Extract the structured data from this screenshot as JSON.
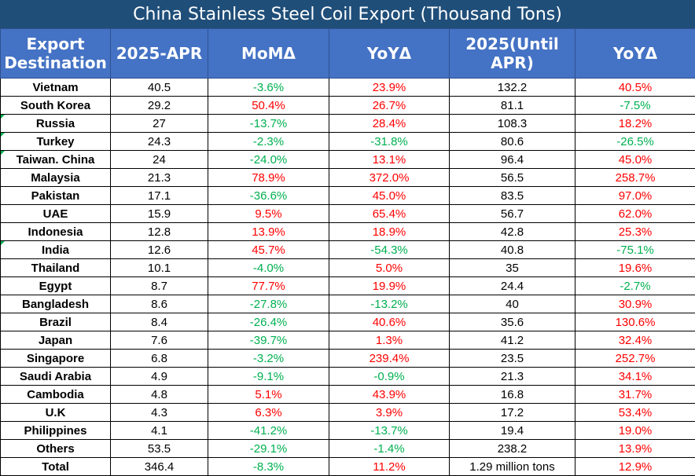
{
  "title": "China Stainless Steel Coil Export (Thousand Tons)",
  "headers": [
    "Export Destination",
    "2025-APR",
    "MoMΔ",
    "YoYΔ",
    "2025(Until APR)",
    "YoYΔ"
  ],
  "colors": {
    "title_bg": "#1f4e79",
    "header_bg": "#4472c4",
    "increase": "#ff0000",
    "decrease": "#00b050"
  },
  "rows": [
    {
      "dest": "Vietnam",
      "apr": "40.5",
      "mom": "-3.6%",
      "yoy": "23.9%",
      "ytd": "132.2",
      "ytd_yoy": "40.5%"
    },
    {
      "dest": "South Korea",
      "apr": "29.2",
      "mom": "50.4%",
      "yoy": "26.7%",
      "ytd": "81.1",
      "ytd_yoy": "-7.5%"
    },
    {
      "dest": "Russia",
      "apr": "27",
      "mom": "-13.7%",
      "yoy": "28.4%",
      "ytd": "108.3",
      "ytd_yoy": "18.2%"
    },
    {
      "dest": "Turkey",
      "apr": "24.3",
      "mom": "-2.3%",
      "yoy": "-31.8%",
      "ytd": "80.6",
      "ytd_yoy": "-26.5%"
    },
    {
      "dest": "Taiwan. China",
      "apr": "24",
      "mom": "-24.0%",
      "yoy": "13.1%",
      "ytd": "96.4",
      "ytd_yoy": "45.0%"
    },
    {
      "dest": "Malaysia",
      "apr": "21.3",
      "mom": "78.9%",
      "yoy": "372.0%",
      "ytd": "56.5",
      "ytd_yoy": "258.7%"
    },
    {
      "dest": "Pakistan",
      "apr": "17.1",
      "mom": "-36.6%",
      "yoy": "45.0%",
      "ytd": "83.5",
      "ytd_yoy": "97.0%"
    },
    {
      "dest": "UAE",
      "apr": "15.9",
      "mom": "9.5%",
      "yoy": "65.4%",
      "ytd": "56.7",
      "ytd_yoy": "62.0%"
    },
    {
      "dest": "Indonesia",
      "apr": "12.8",
      "mom": "13.9%",
      "yoy": "18.9%",
      "ytd": "42.8",
      "ytd_yoy": "25.3%"
    },
    {
      "dest": "India",
      "apr": "12.6",
      "mom": "45.7%",
      "yoy": "-54.3%",
      "ytd": "40.8",
      "ytd_yoy": "-75.1%"
    },
    {
      "dest": "Thailand",
      "apr": "10.1",
      "mom": "-4.0%",
      "yoy": "5.0%",
      "ytd": "35",
      "ytd_yoy": "19.6%"
    },
    {
      "dest": "Egypt",
      "apr": "8.7",
      "mom": "77.7%",
      "yoy": "19.9%",
      "ytd": "24.4",
      "ytd_yoy": "-2.7%"
    },
    {
      "dest": "Bangladesh",
      "apr": "8.6",
      "mom": "-27.8%",
      "yoy": "-13.2%",
      "ytd": "40",
      "ytd_yoy": "30.9%"
    },
    {
      "dest": "Brazil",
      "apr": "8.4",
      "mom": "-26.4%",
      "yoy": "40.6%",
      "ytd": "35.6",
      "ytd_yoy": "130.6%"
    },
    {
      "dest": "Japan",
      "apr": "7.6",
      "mom": "-39.7%",
      "yoy": "1.3%",
      "ytd": "41.2",
      "ytd_yoy": "32.4%"
    },
    {
      "dest": "Singapore",
      "apr": "6.8",
      "mom": "-3.2%",
      "yoy": "239.4%",
      "ytd": "23.5",
      "ytd_yoy": "252.7%"
    },
    {
      "dest": "Saudi Arabia",
      "apr": "4.9",
      "mom": "-9.1%",
      "yoy": "-0.9%",
      "ytd": "21.3",
      "ytd_yoy": "34.1%"
    },
    {
      "dest": "Cambodia",
      "apr": "4.8",
      "mom": "5.1%",
      "yoy": "43.9%",
      "ytd": "16.8",
      "ytd_yoy": "31.7%"
    },
    {
      "dest": "U.K",
      "apr": "4.3",
      "mom": "6.3%",
      "yoy": "3.9%",
      "ytd": "17.2",
      "ytd_yoy": "53.4%"
    },
    {
      "dest": "Philippines",
      "apr": "4.1",
      "mom": "-41.2%",
      "yoy": "-13.7%",
      "ytd": "19.4",
      "ytd_yoy": "19.0%"
    },
    {
      "dest": "Others",
      "apr": "53.5",
      "mom": "-29.1%",
      "yoy": "-1.4%",
      "ytd": "238.2",
      "ytd_yoy": "13.9%"
    },
    {
      "dest": "Total",
      "apr": "346.4",
      "mom": "-8.3%",
      "yoy": "11.2%",
      "ytd": "1.29 million tons",
      "ytd_yoy": "12.9%"
    }
  ]
}
